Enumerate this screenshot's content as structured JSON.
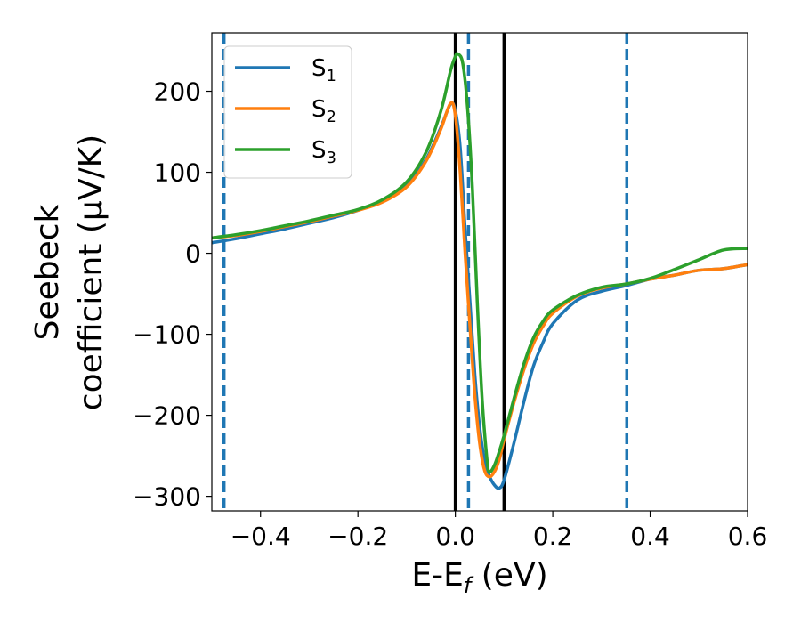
{
  "chart_data": {
    "type": "line",
    "xlabel": "E-E",
    "xlabel_sub": "f",
    "xlabel_unit": " (eV)",
    "ylabel_line1": "Seebeck",
    "ylabel_line2": "coefficient  (μV/K)",
    "xlim": [
      -0.5,
      0.6
    ],
    "ylim": [
      -318,
      272
    ],
    "xticks": [
      -0.4,
      -0.2,
      0.0,
      0.2,
      0.4,
      0.6
    ],
    "xtick_labels": [
      "−0.4",
      "−0.2",
      "0.0",
      "0.2",
      "0.4",
      "0.6"
    ],
    "yticks": [
      -300,
      -200,
      -100,
      0,
      100,
      200
    ],
    "ytick_labels": [
      "−300",
      "−200",
      "−100",
      "0",
      "100",
      "200"
    ],
    "grid": false,
    "legend_position": "top-left",
    "vlines_solid": [
      0.0,
      0.1
    ],
    "vlines_dashed": [
      -0.475,
      0.027,
      0.352
    ],
    "vline_solid_color": "#000000",
    "vline_dashed_color": "#1f77b4",
    "series": [
      {
        "name": "S",
        "sub": "1",
        "color": "#1f77b4",
        "points": [
          [
            -0.5,
            13
          ],
          [
            -0.45,
            18
          ],
          [
            -0.4,
            24
          ],
          [
            -0.35,
            30
          ],
          [
            -0.3,
            37
          ],
          [
            -0.25,
            44
          ],
          [
            -0.2,
            53
          ],
          [
            -0.15,
            65
          ],
          [
            -0.1,
            84
          ],
          [
            -0.06,
            116
          ],
          [
            -0.03,
            155
          ],
          [
            -0.01,
            184
          ],
          [
            0.0,
            176
          ],
          [
            0.01,
            130
          ],
          [
            0.02,
            30
          ],
          [
            0.03,
            -60
          ],
          [
            0.04,
            -150
          ],
          [
            0.05,
            -215
          ],
          [
            0.06,
            -255
          ],
          [
            0.07,
            -275
          ],
          [
            0.08,
            -286
          ],
          [
            0.09,
            -290
          ],
          [
            0.1,
            -280
          ],
          [
            0.12,
            -235
          ],
          [
            0.14,
            -185
          ],
          [
            0.16,
            -140
          ],
          [
            0.18,
            -110
          ],
          [
            0.2,
            -87
          ],
          [
            0.25,
            -58
          ],
          [
            0.3,
            -47
          ],
          [
            0.35,
            -40
          ],
          [
            0.4,
            -32
          ],
          [
            0.45,
            -27
          ],
          [
            0.5,
            -21
          ],
          [
            0.55,
            -19
          ],
          [
            0.6,
            -14
          ]
        ]
      },
      {
        "name": "S",
        "sub": "2",
        "color": "#ff7f0e",
        "points": [
          [
            -0.5,
            19
          ],
          [
            -0.45,
            22
          ],
          [
            -0.4,
            27
          ],
          [
            -0.35,
            33
          ],
          [
            -0.3,
            39
          ],
          [
            -0.25,
            46
          ],
          [
            -0.2,
            53
          ],
          [
            -0.15,
            63
          ],
          [
            -0.1,
            82
          ],
          [
            -0.06,
            114
          ],
          [
            -0.03,
            153
          ],
          [
            -0.01,
            185
          ],
          [
            0.0,
            170
          ],
          [
            0.01,
            100
          ],
          [
            0.02,
            0
          ],
          [
            0.03,
            -90
          ],
          [
            0.04,
            -175
          ],
          [
            0.05,
            -235
          ],
          [
            0.06,
            -268
          ],
          [
            0.07,
            -276
          ],
          [
            0.08,
            -270
          ],
          [
            0.09,
            -255
          ],
          [
            0.1,
            -230
          ],
          [
            0.12,
            -185
          ],
          [
            0.14,
            -145
          ],
          [
            0.16,
            -112
          ],
          [
            0.18,
            -90
          ],
          [
            0.2,
            -74
          ],
          [
            0.25,
            -53
          ],
          [
            0.3,
            -43
          ],
          [
            0.35,
            -38
          ],
          [
            0.4,
            -32
          ],
          [
            0.45,
            -27
          ],
          [
            0.5,
            -21
          ],
          [
            0.55,
            -19
          ],
          [
            0.6,
            -14
          ]
        ]
      },
      {
        "name": "S",
        "sub": "3",
        "color": "#2ca02c",
        "points": [
          [
            -0.5,
            19
          ],
          [
            -0.45,
            23
          ],
          [
            -0.4,
            28
          ],
          [
            -0.35,
            34
          ],
          [
            -0.3,
            40
          ],
          [
            -0.25,
            47
          ],
          [
            -0.2,
            54
          ],
          [
            -0.15,
            66
          ],
          [
            -0.1,
            88
          ],
          [
            -0.06,
            125
          ],
          [
            -0.03,
            175
          ],
          [
            -0.01,
            225
          ],
          [
            0.0,
            243
          ],
          [
            0.005,
            246
          ],
          [
            0.015,
            235
          ],
          [
            0.025,
            180
          ],
          [
            0.035,
            80
          ],
          [
            0.045,
            -60
          ],
          [
            0.055,
            -180
          ],
          [
            0.065,
            -255
          ],
          [
            0.07,
            -270
          ],
          [
            0.08,
            -262
          ],
          [
            0.09,
            -245
          ],
          [
            0.1,
            -225
          ],
          [
            0.12,
            -180
          ],
          [
            0.14,
            -138
          ],
          [
            0.16,
            -105
          ],
          [
            0.18,
            -84
          ],
          [
            0.2,
            -70
          ],
          [
            0.25,
            -52
          ],
          [
            0.3,
            -42
          ],
          [
            0.35,
            -38
          ],
          [
            0.4,
            -31
          ],
          [
            0.45,
            -20
          ],
          [
            0.5,
            -8
          ],
          [
            0.55,
            4
          ],
          [
            0.6,
            6
          ]
        ]
      }
    ]
  }
}
